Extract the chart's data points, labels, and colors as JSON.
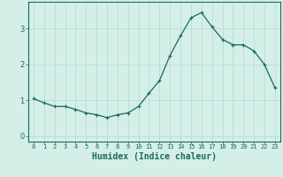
{
  "x": [
    0,
    1,
    2,
    3,
    4,
    5,
    6,
    7,
    8,
    9,
    10,
    11,
    12,
    13,
    14,
    15,
    16,
    17,
    18,
    19,
    20,
    21,
    22,
    23
  ],
  "y": [
    1.05,
    0.93,
    0.83,
    0.83,
    0.75,
    0.65,
    0.6,
    0.52,
    0.6,
    0.65,
    0.83,
    1.2,
    1.55,
    2.25,
    2.8,
    3.3,
    3.45,
    3.05,
    2.7,
    2.55,
    2.55,
    2.38,
    2.0,
    1.35
  ],
  "line_color": "#1a6b5a",
  "marker": "+",
  "marker_size": 3,
  "background_color": "#d4eee8",
  "grid_color": "#b8d8d0",
  "xlabel": "Humidex (Indice chaleur)",
  "xlabel_fontsize": 7,
  "tick_fontsize": 6,
  "yticks": [
    0,
    1,
    2,
    3
  ],
  "ylim": [
    -0.15,
    3.75
  ],
  "xlim": [
    -0.5,
    23.5
  ],
  "line_width": 0.9
}
